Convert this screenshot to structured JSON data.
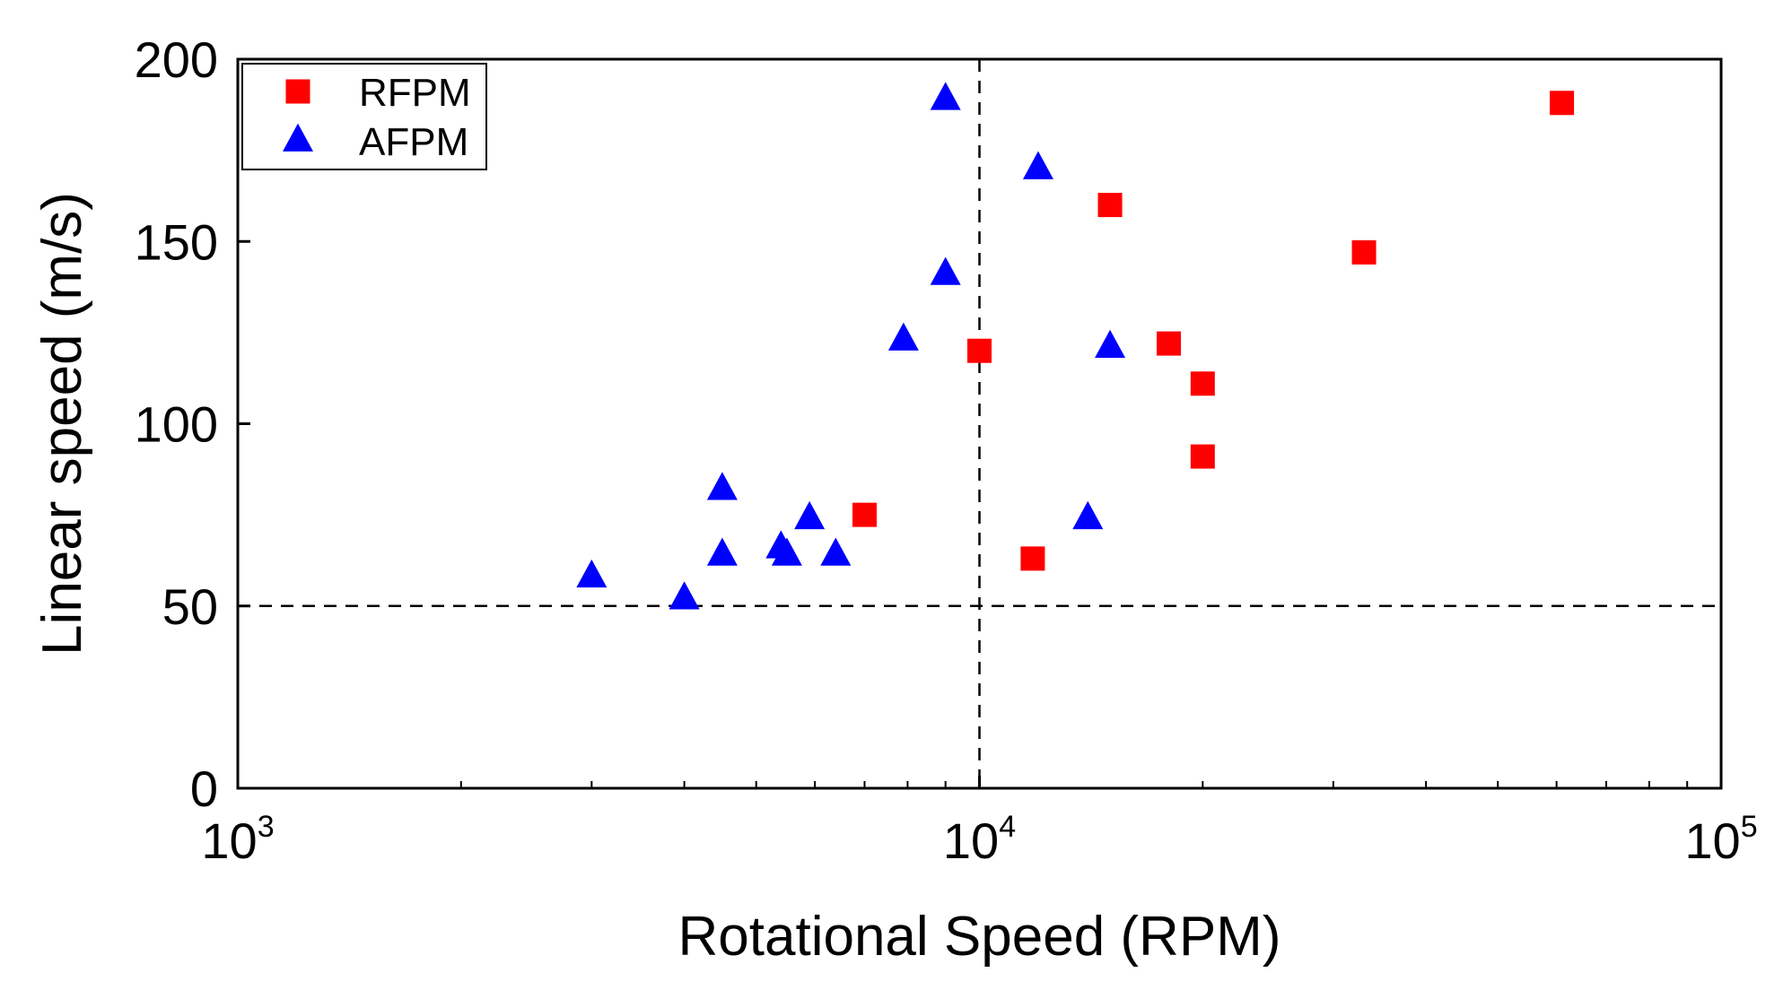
{
  "chart_data": {
    "type": "scatter",
    "title": "",
    "xlabel": "Rotational Speed (RPM)",
    "ylabel": "Linear speed (m/s)",
    "xscale": "log",
    "xlim": [
      1000,
      100000
    ],
    "ylim": [
      0,
      200
    ],
    "x_ticks": [
      {
        "value": 1000,
        "base": "10",
        "exp": "3"
      },
      {
        "value": 10000,
        "base": "10",
        "exp": "4"
      },
      {
        "value": 100000,
        "base": "10",
        "exp": "5"
      }
    ],
    "y_ticks": [
      0,
      50,
      100,
      150,
      200
    ],
    "y_tick_labels": [
      "0",
      "50",
      "100",
      "150",
      "200"
    ],
    "reference_lines": [
      {
        "orientation": "horizontal",
        "value": 50,
        "style": "dashed"
      },
      {
        "orientation": "vertical",
        "value": 10000,
        "style": "dashed"
      }
    ],
    "legend_position": "top-left",
    "series": [
      {
        "name": "RFPM",
        "marker": "square",
        "color": "#ff0000",
        "points": [
          [
            7000,
            75
          ],
          [
            10000,
            120
          ],
          [
            11800,
            63
          ],
          [
            15000,
            160
          ],
          [
            18000,
            122
          ],
          [
            20000,
            111
          ],
          [
            20000,
            91
          ],
          [
            33000,
            147
          ],
          [
            61000,
            188
          ]
        ]
      },
      {
        "name": "AFPM",
        "marker": "triangle",
        "color": "#0000ff",
        "points": [
          [
            3000,
            58
          ],
          [
            4000,
            52
          ],
          [
            4500,
            82
          ],
          [
            4500,
            64
          ],
          [
            5400,
            66
          ],
          [
            5500,
            64
          ],
          [
            5900,
            74
          ],
          [
            6400,
            64
          ],
          [
            7900,
            123
          ],
          [
            9000,
            189
          ],
          [
            9000,
            141
          ],
          [
            12000,
            170
          ],
          [
            15000,
            121
          ],
          [
            14000,
            74
          ]
        ]
      }
    ]
  }
}
